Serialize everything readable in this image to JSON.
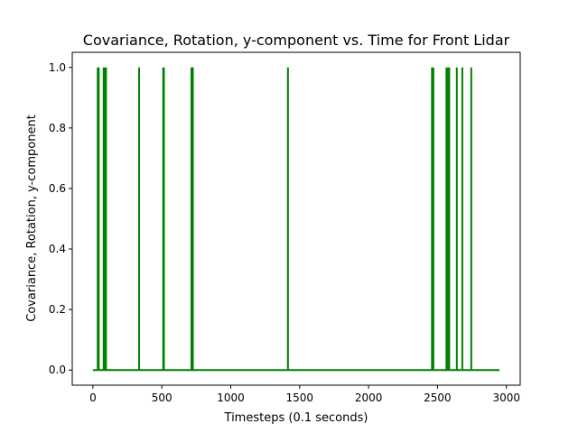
{
  "chart_data": {
    "type": "line",
    "title": "Covariance, Rotation, y-component vs. Time for Front Lidar",
    "xlabel": "Timesteps (0.1 seconds)",
    "ylabel": "Covariance, Rotation, y-component",
    "xlim": [
      -150,
      3100
    ],
    "ylim": [
      -0.05,
      1.05
    ],
    "x_ticks": [
      0,
      500,
      1000,
      1500,
      2000,
      2500,
      3000
    ],
    "x_tick_labels": [
      "0",
      "500",
      "1000",
      "1500",
      "2000",
      "2500",
      "3000"
    ],
    "y_ticks": [
      0.0,
      0.2,
      0.4,
      0.6,
      0.8,
      1.0
    ],
    "y_tick_labels": [
      "0.0",
      "0.2",
      "0.4",
      "0.6",
      "0.8",
      "1.0"
    ],
    "grid": false,
    "legend": "none",
    "series": [
      {
        "color": "#008000",
        "baseline_value": 0.0,
        "peak_value": 1.0,
        "x_range": [
          0,
          2950
        ],
        "spike_x": [
          35,
          42,
          78,
          83,
          95,
          335,
          510,
          515,
          715,
          720,
          725,
          1415,
          2460,
          2465,
          2470,
          2565,
          2570,
          2575,
          2585,
          2640,
          2680,
          2745
        ]
      }
    ]
  }
}
